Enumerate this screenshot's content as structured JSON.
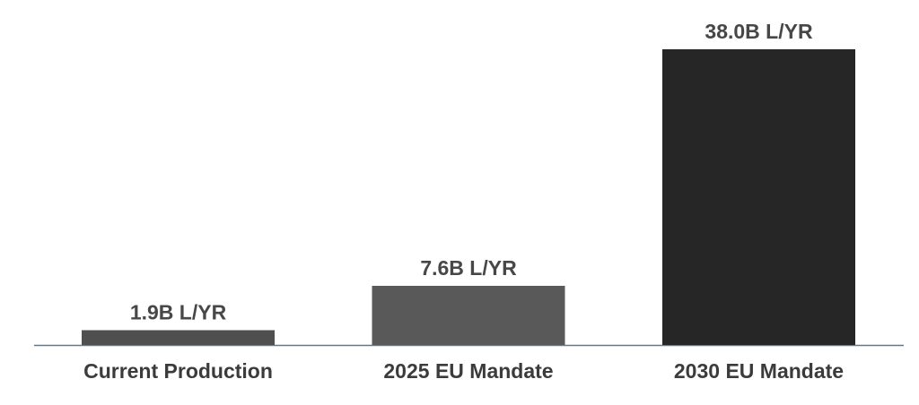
{
  "chart_data": {
    "type": "bar",
    "categories": [
      "Current Production",
      "2025 EU Mandate",
      "2030 EU Mandate"
    ],
    "values": [
      1.9,
      7.6,
      38.0
    ],
    "value_labels": [
      "1.9B L/YR",
      "7.6B L/YR",
      "38.0B L/YR"
    ],
    "colors": [
      "#4f4f4f",
      "#595959",
      "#262626"
    ]
  }
}
